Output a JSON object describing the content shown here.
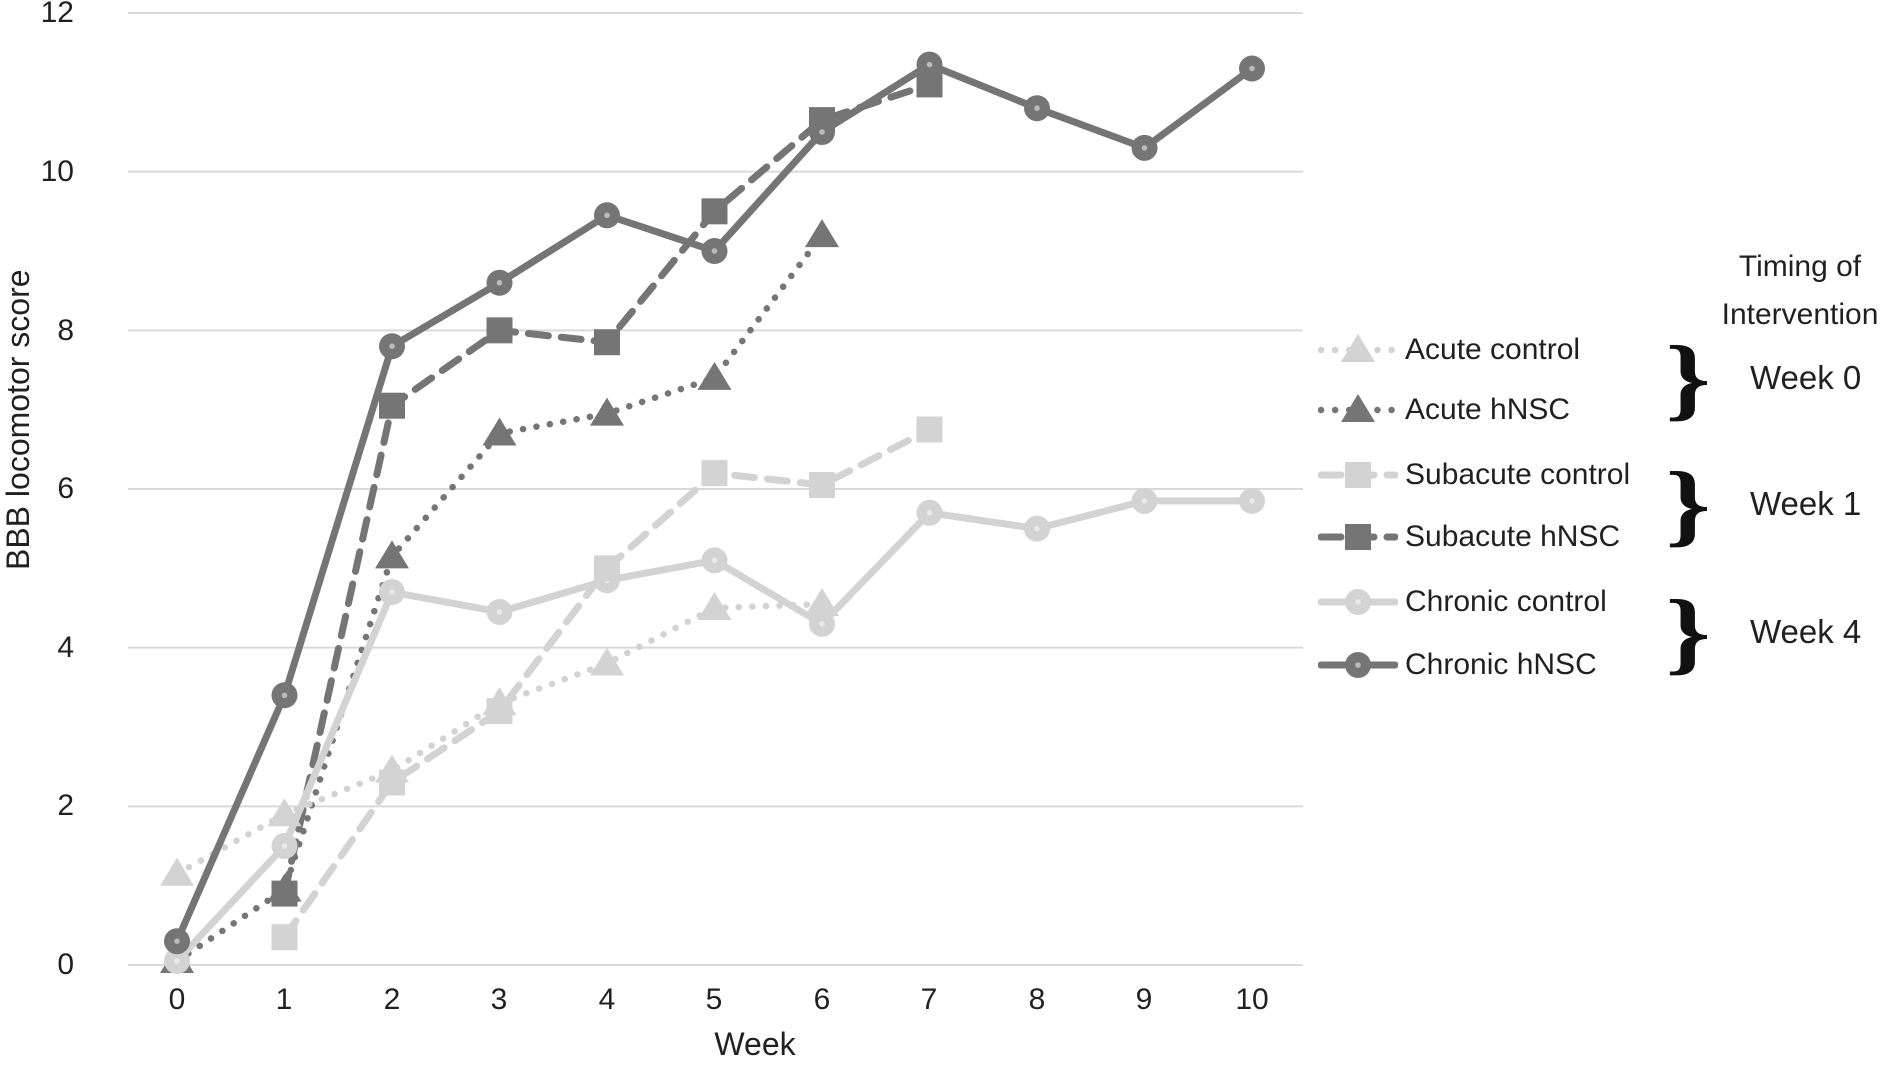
{
  "chart_data": {
    "type": "line",
    "title": "",
    "xlabel": "Week",
    "ylabel": "BBB locomotor score",
    "xlim": [
      0,
      10
    ],
    "ylim": [
      0,
      12
    ],
    "x_ticks": [
      0,
      1,
      2,
      3,
      4,
      5,
      6,
      7,
      8,
      9,
      10
    ],
    "y_ticks": [
      0,
      2,
      4,
      6,
      8,
      10,
      12
    ],
    "grid": "horizontal-only",
    "legend_position": "right",
    "colors": {
      "dark_series": "#757575",
      "light_series": "#d3d3d3",
      "gridline": "#d9d9d9",
      "text": "#231f20",
      "brace": "#111111"
    },
    "series": [
      {
        "name": "Acute control",
        "shade": "light",
        "marker": "triangle",
        "line": "dotted",
        "x": [
          0,
          1,
          2,
          3,
          4,
          5,
          6
        ],
        "y": [
          1.15,
          1.9,
          2.45,
          3.3,
          3.8,
          4.5,
          4.55
        ]
      },
      {
        "name": "Acute hNSC",
        "shade": "dark",
        "marker": "triangle",
        "line": "dotted",
        "x": [
          0,
          1,
          2,
          3,
          4,
          5,
          6
        ],
        "y": [
          0.05,
          0.95,
          5.15,
          6.7,
          6.95,
          7.4,
          9.2
        ]
      },
      {
        "name": "Subacute control",
        "shade": "light",
        "marker": "square",
        "line": "dashed",
        "x": [
          1,
          2,
          3,
          4,
          5,
          6,
          7
        ],
        "y": [
          0.35,
          2.3,
          3.2,
          5.0,
          6.2,
          6.05,
          6.75
        ]
      },
      {
        "name": "Subacute hNSC",
        "shade": "dark",
        "marker": "square",
        "line": "dashed",
        "x": [
          1,
          2,
          3,
          4,
          5,
          6,
          7
        ],
        "y": [
          0.9,
          7.05,
          8.0,
          7.85,
          9.5,
          10.65,
          11.1
        ]
      },
      {
        "name": "Chronic control",
        "shade": "light",
        "marker": "circle",
        "line": "solid",
        "x": [
          0,
          1,
          2,
          3,
          4,
          5,
          6,
          7,
          8,
          9,
          10
        ],
        "y": [
          0.05,
          1.5,
          4.7,
          4.45,
          4.85,
          5.1,
          4.3,
          5.7,
          5.5,
          5.85,
          5.85
        ]
      },
      {
        "name": "Chronic hNSC",
        "shade": "dark",
        "marker": "circle",
        "line": "solid",
        "x": [
          0,
          1,
          2,
          3,
          4,
          5,
          6,
          7,
          8,
          9,
          10
        ],
        "y": [
          0.3,
          3.4,
          7.8,
          8.6,
          9.45,
          9.0,
          10.5,
          11.35,
          10.8,
          10.3,
          11.3
        ]
      }
    ]
  },
  "timing": {
    "header_line1": "Timing of",
    "header_line2": "Intervention",
    "brace_glyph": "}",
    "groups": [
      {
        "label": "Week 0"
      },
      {
        "label": "Week 1"
      },
      {
        "label": "Week 4"
      }
    ]
  }
}
